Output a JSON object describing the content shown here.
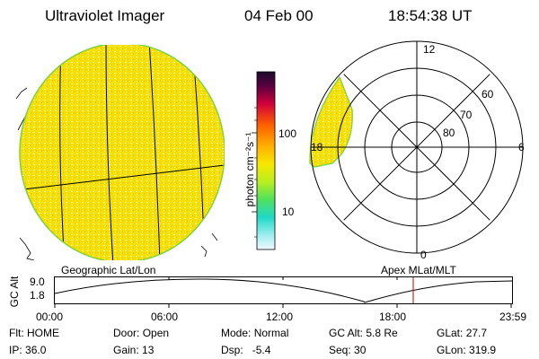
{
  "header": {
    "instrument": "Ultraviolet Imager",
    "date": "04 Feb 00",
    "time": "18:54:38 UT"
  },
  "colorbar": {
    "unit_label": "photon cm⁻²s⁻¹",
    "tick_100": "100",
    "tick_10": "10"
  },
  "polar": {
    "mlt_labels": [
      "12",
      "18",
      "6",
      "0"
    ],
    "lat_labels": [
      "60",
      "70",
      "80"
    ]
  },
  "captions": {
    "geo": "Geographic Lat/Lon",
    "apex": "Apex MLat/MLT"
  },
  "altplot": {
    "ylabel": "GC Alt",
    "ymax": "9.0",
    "ymin": "1.8",
    "ticks": [
      "00:00",
      "06:00",
      "12:00",
      "18:00",
      "23:59"
    ]
  },
  "status": {
    "row1": [
      {
        "label": "Flt:",
        "value": "HOME"
      },
      {
        "label": "Door:",
        "value": "Open"
      },
      {
        "label": "Mode:",
        "value": "Normal"
      },
      {
        "label": "GC Alt:",
        "value": "5.8 Re"
      },
      {
        "label": "GLat:",
        "value": "27.7"
      }
    ],
    "row2": [
      {
        "label": "IP:",
        "value": "36.0"
      },
      {
        "label": "Gain:",
        "value": "13"
      },
      {
        "label": "Dsp:",
        "value": "-5.4"
      },
      {
        "label": "Seq:",
        "value": "30"
      },
      {
        "label": "GLon:",
        "value": "319.9"
      }
    ]
  },
  "colors": {
    "image_fill": "#f7e600",
    "cursor": "#cc0000"
  }
}
